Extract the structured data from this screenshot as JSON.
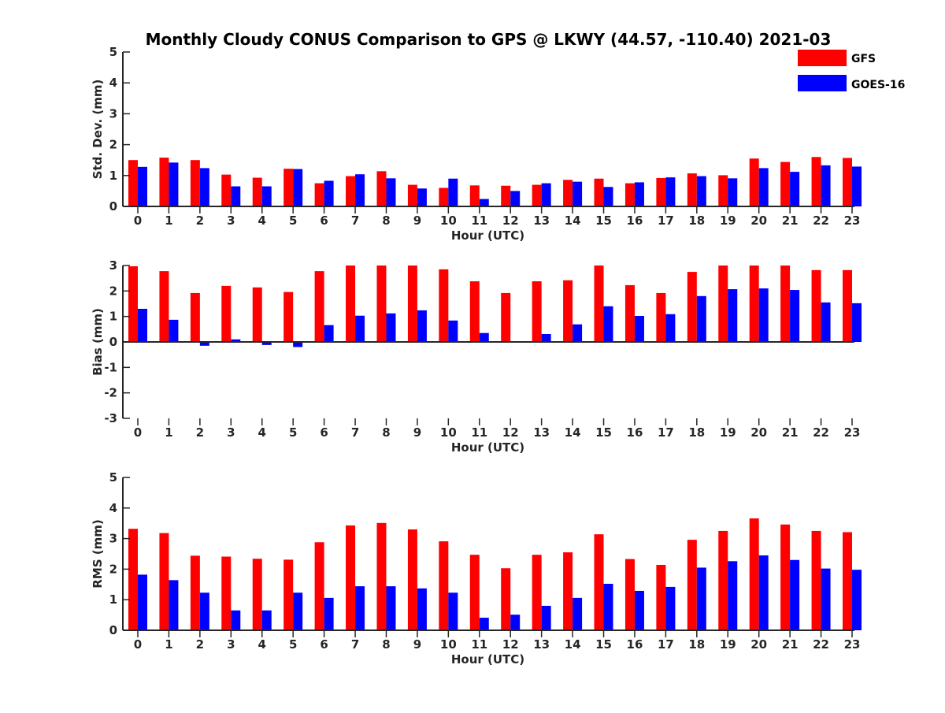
{
  "title": "Monthly Cloudy CONUS Comparison to GPS @ LKWY (44.57, -110.40) 2021-03",
  "legend": [
    {
      "label": "GFS",
      "color": "#ff0000"
    },
    {
      "label": "GOES-16",
      "color": "#0000ff"
    }
  ],
  "chart_data": [
    {
      "type": "bar",
      "xlabel": "Hour (UTC)",
      "ylabel": "Std. Dev. (mm)",
      "ylim": [
        0,
        5
      ],
      "yticks": [
        0,
        1,
        2,
        3,
        4,
        5
      ],
      "categories": [
        "0",
        "1",
        "2",
        "3",
        "4",
        "5",
        "6",
        "7",
        "8",
        "9",
        "10",
        "11",
        "12",
        "13",
        "14",
        "15",
        "16",
        "17",
        "18",
        "19",
        "20",
        "21",
        "22",
        "23"
      ],
      "series": [
        {
          "name": "GFS",
          "color": "#ff0000",
          "values": [
            1.5,
            1.58,
            1.5,
            1.03,
            0.93,
            1.22,
            0.75,
            0.98,
            1.14,
            0.7,
            0.6,
            0.68,
            0.67,
            0.7,
            0.86,
            0.9,
            0.75,
            0.92,
            1.07,
            1.01,
            1.55,
            1.44,
            1.6,
            1.57
          ]
        },
        {
          "name": "GOES-16",
          "color": "#0000ff",
          "values": [
            1.28,
            1.42,
            1.24,
            0.65,
            0.65,
            1.21,
            0.83,
            1.04,
            0.91,
            0.58,
            0.9,
            0.24,
            0.5,
            0.75,
            0.8,
            0.63,
            0.78,
            0.94,
            0.98,
            0.91,
            1.24,
            1.12,
            1.33,
            1.29
          ]
        }
      ]
    },
    {
      "type": "bar",
      "xlabel": "Hour (UTC)",
      "ylabel": "Bias (mm)",
      "ylim": [
        -3,
        3
      ],
      "yticks": [
        -3,
        -2,
        -1,
        0,
        1,
        2,
        3
      ],
      "categories": [
        "0",
        "1",
        "2",
        "3",
        "4",
        "5",
        "6",
        "7",
        "8",
        "9",
        "10",
        "11",
        "12",
        "13",
        "14",
        "15",
        "16",
        "17",
        "18",
        "19",
        "20",
        "21",
        "22",
        "23"
      ],
      "series": [
        {
          "name": "GFS",
          "color": "#ff0000",
          "values": [
            2.97,
            2.78,
            1.92,
            2.2,
            2.14,
            1.96,
            2.78,
            3.0,
            3.0,
            3.0,
            2.85,
            2.38,
            1.92,
            2.38,
            2.42,
            3.0,
            2.23,
            1.92,
            2.75,
            3.0,
            3.0,
            3.0,
            2.82,
            2.82
          ]
        },
        {
          "name": "GOES-16",
          "color": "#0000ff",
          "values": [
            1.3,
            0.87,
            -0.15,
            0.1,
            -0.12,
            -0.2,
            0.66,
            1.03,
            1.12,
            1.24,
            0.84,
            0.35,
            0.0,
            0.31,
            0.69,
            1.4,
            1.02,
            1.09,
            1.8,
            2.07,
            2.1,
            2.04,
            1.55,
            1.52
          ]
        }
      ]
    },
    {
      "type": "bar",
      "xlabel": "Hour (UTC)",
      "ylabel": "RMS (mm)",
      "ylim": [
        0,
        5
      ],
      "yticks": [
        0,
        1,
        2,
        3,
        4,
        5
      ],
      "categories": [
        "0",
        "1",
        "2",
        "3",
        "4",
        "5",
        "6",
        "7",
        "8",
        "9",
        "10",
        "11",
        "12",
        "13",
        "14",
        "15",
        "16",
        "17",
        "18",
        "19",
        "20",
        "21",
        "22",
        "23"
      ],
      "series": [
        {
          "name": "GFS",
          "color": "#ff0000",
          "values": [
            3.32,
            3.18,
            2.44,
            2.41,
            2.34,
            2.31,
            2.88,
            3.43,
            3.51,
            3.3,
            2.91,
            2.47,
            2.03,
            2.47,
            2.55,
            3.14,
            2.33,
            2.14,
            2.96,
            3.25,
            3.66,
            3.46,
            3.25,
            3.21
          ]
        },
        {
          "name": "GOES-16",
          "color": "#0000ff",
          "values": [
            1.82,
            1.64,
            1.23,
            0.65,
            0.65,
            1.23,
            1.06,
            1.44,
            1.44,
            1.37,
            1.23,
            0.41,
            0.51,
            0.8,
            1.06,
            1.52,
            1.29,
            1.42,
            2.05,
            2.26,
            2.45,
            2.3,
            2.02,
            1.98
          ]
        }
      ]
    }
  ]
}
